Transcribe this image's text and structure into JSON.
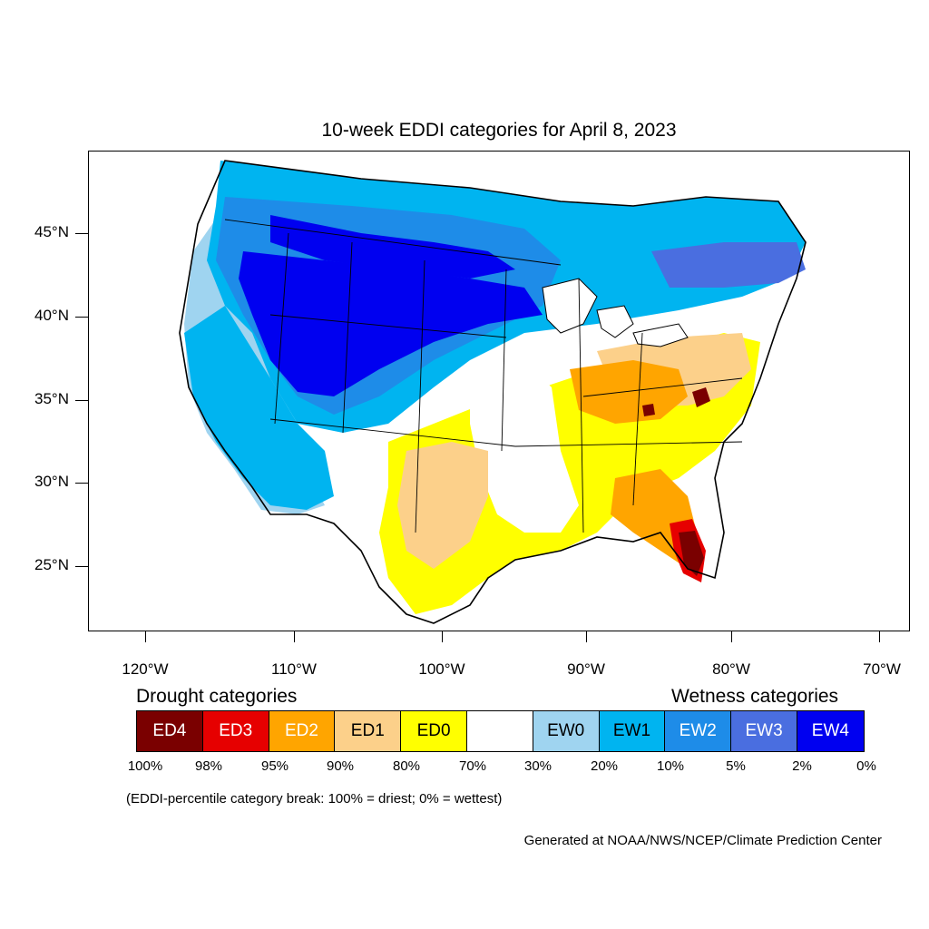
{
  "title": "10-week EDDI categories for April 8, 2023",
  "lat_labels": [
    "45°N",
    "40°N",
    "35°N",
    "30°N",
    "25°N"
  ],
  "lon_labels": [
    "120°W",
    "110°W",
    "100°W",
    "90°W",
    "80°W",
    "70°W"
  ],
  "legend": {
    "drought_heading": "Drought categories",
    "wetness_heading": "Wetness categories",
    "categories": [
      {
        "label": "ED4",
        "color": "#7a0000",
        "text_color": "#ffffff"
      },
      {
        "label": "ED3",
        "color": "#e60000",
        "text_color": "#ffffff"
      },
      {
        "label": "ED2",
        "color": "#ffa500",
        "text_color": "#ffffff"
      },
      {
        "label": "ED1",
        "color": "#fcd08a",
        "text_color": "#000000"
      },
      {
        "label": "ED0",
        "color": "#ffff00",
        "text_color": "#000000"
      },
      {
        "label": "",
        "color": "#ffffff",
        "text_color": "#000000"
      },
      {
        "label": "EW0",
        "color": "#9fd4f0",
        "text_color": "#000000"
      },
      {
        "label": "EW1",
        "color": "#00b4f0",
        "text_color": "#000000"
      },
      {
        "label": "EW2",
        "color": "#1e8ce8",
        "text_color": "#ffffff"
      },
      {
        "label": "EW3",
        "color": "#4a6ee0",
        "text_color": "#ffffff"
      },
      {
        "label": "EW4",
        "color": "#0000f0",
        "text_color": "#ffffff"
      }
    ],
    "breaks": [
      "100%",
      "98%",
      "95%",
      "90%",
      "80%",
      "70%",
      "30%",
      "20%",
      "10%",
      "5%",
      "2%",
      "0%"
    ]
  },
  "note": "(EDDI-percentile category break: 100% = driest; 0% = wettest)",
  "credit": "Generated at NOAA/NWS/NCEP/Climate Prediction Center"
}
